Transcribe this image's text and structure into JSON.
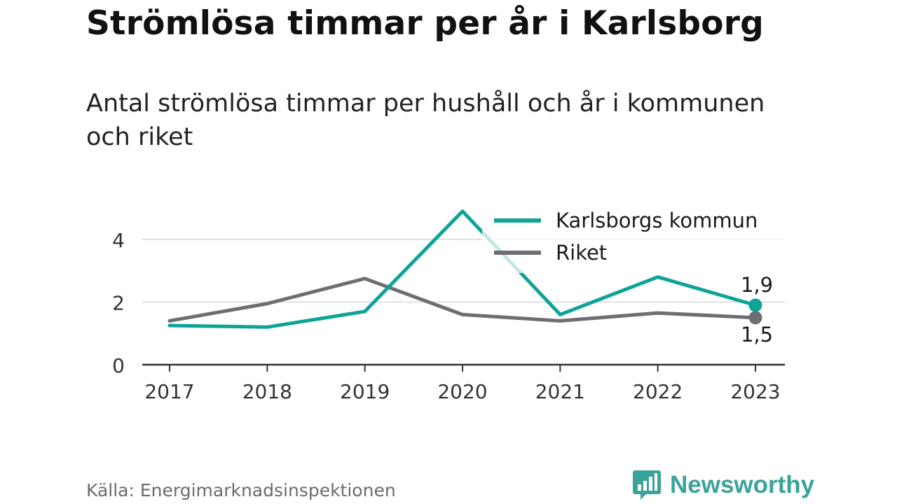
{
  "title": "Strömlösa timmar per år i Karlsborg",
  "subtitle": "Antal strömlösa timmar per hushåll och år i kommunen och riket",
  "source": "Källa: Energimarknadsinspektionen",
  "brand": {
    "name": "Newsworthy",
    "icon": "newsworthy-logo-icon",
    "color": "#3aa39a"
  },
  "chart_data": {
    "type": "line",
    "x": [
      "2017",
      "2018",
      "2019",
      "2020",
      "2021",
      "2022",
      "2023"
    ],
    "ylim": [
      0,
      5
    ],
    "yticks": [
      "0",
      "2",
      "4"
    ],
    "ytick_values": [
      0,
      2,
      4
    ],
    "grid": true,
    "legend_position": "top-right",
    "series": [
      {
        "name": "Karlsborgs kommun",
        "color": "#0fa397",
        "values": [
          1.25,
          1.2,
          1.7,
          4.9,
          1.6,
          2.8,
          1.9
        ],
        "end_label": "1,9"
      },
      {
        "name": "Riket",
        "color": "#6e6d72",
        "values": [
          1.4,
          1.95,
          2.75,
          1.6,
          1.4,
          1.65,
          1.5
        ],
        "end_label": "1,5"
      }
    ]
  }
}
